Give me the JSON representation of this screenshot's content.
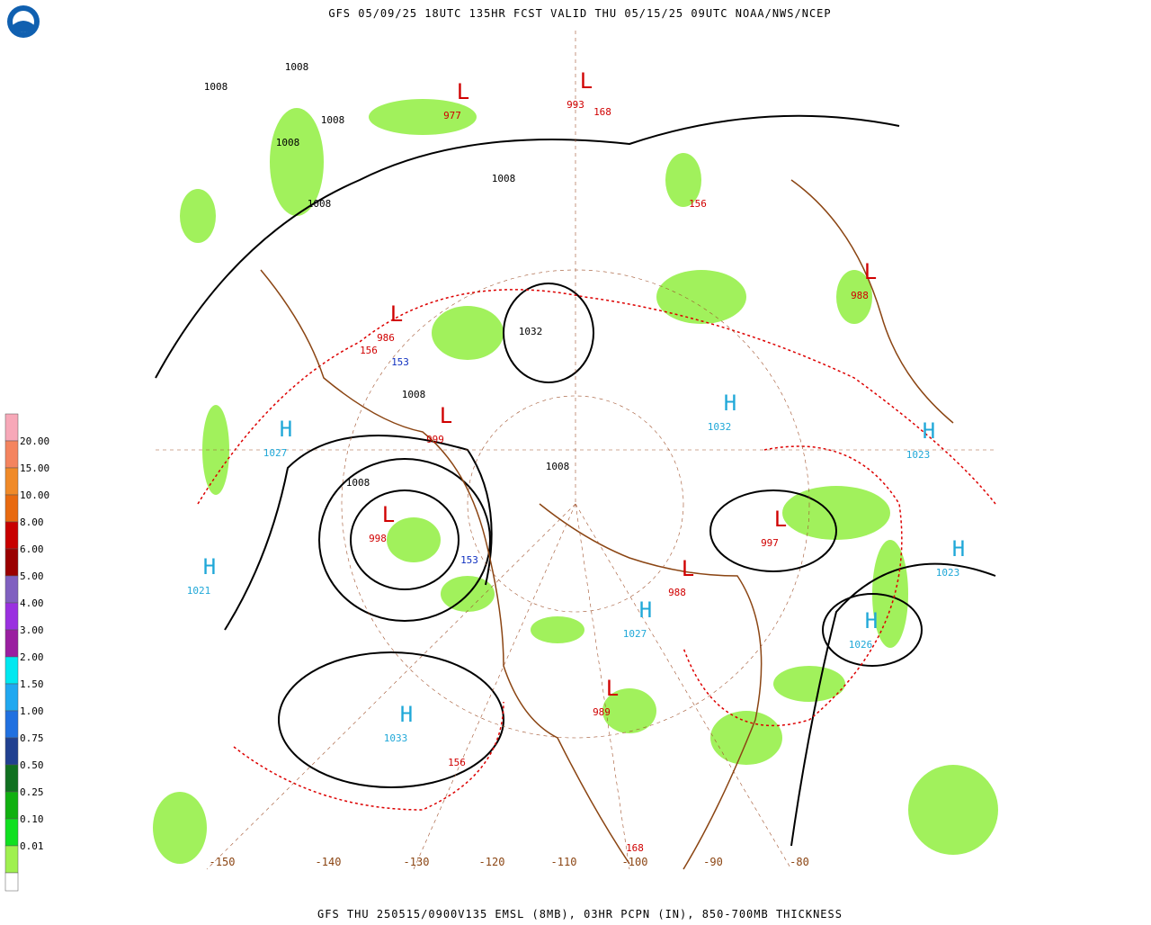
{
  "header": {
    "title": "GFS 05/09/25 18UTC 135HR FCST VALID THU 05/15/25 09UTC NOAA/NWS/NCEP"
  },
  "footer": {
    "text": "GFS THU 250515/0900V135 EMSL (8MB), 03HR PCPN (IN), 850-700MB THICKNESS"
  },
  "legend": {
    "labels": [
      "20.00",
      "15.00",
      "10.00",
      "8.00",
      "6.00",
      "5.00",
      "4.00",
      "3.00",
      "2.00",
      "1.50",
      "1.00",
      "0.75",
      "0.50",
      "0.25",
      "0.10",
      "0.01"
    ],
    "colors": [
      "#f7a8b8",
      "#f4845f",
      "#f08a28",
      "#e86a10",
      "#c80000",
      "#9a0000",
      "#8060c0",
      "#9a30e0",
      "#9a1fa0",
      "#00e8f0",
      "#20a8f0",
      "#2070e0",
      "#204090",
      "#107020",
      "#10b010",
      "#10e020",
      "#a0f050"
    ]
  },
  "map": {
    "longitudes": [
      "-150",
      "-140",
      "-130",
      "-120",
      "-110",
      "-100",
      "-90",
      "-80"
    ],
    "centers": [
      {
        "symbol": "H",
        "value": 1027
      },
      {
        "symbol": "H",
        "value": 1021
      },
      {
        "symbol": "H",
        "value": 1033
      },
      {
        "symbol": "L",
        "value": 998
      },
      {
        "symbol": "L",
        "value": 997
      },
      {
        "symbol": "L",
        "value": 989
      },
      {
        "symbol": "H",
        "value": 1026
      },
      {
        "symbol": "H",
        "value": 1023
      },
      {
        "symbol": "H",
        "value": 1023
      },
      {
        "symbol": "H",
        "value": 1032
      },
      {
        "symbol": "H",
        "value": 1027
      },
      {
        "symbol": "L",
        "value": 986
      },
      {
        "symbol": "L",
        "value": 988
      },
      {
        "symbol": "L",
        "value": 999
      },
      {
        "symbol": "L",
        "value": 977
      },
      {
        "symbol": "L",
        "value": 993
      },
      {
        "symbol": "L",
        "value": 988
      }
    ],
    "isobar_labels": [
      "1008",
      "1008",
      "1008",
      "1008",
      "1008",
      "1008",
      "1008",
      "1008",
      "1008",
      "1032"
    ],
    "thickness_labels": [
      "156",
      "156",
      "168",
      "153",
      "153",
      "168",
      "156"
    ]
  }
}
